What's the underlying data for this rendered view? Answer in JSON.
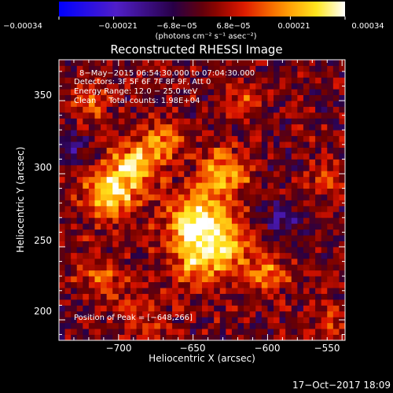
{
  "chart_data": {
    "type": "heatmap",
    "title": "Reconstructed RHESSI Image",
    "xlabel": "Heliocentric X (arcsec)",
    "ylabel": "Heliocentric Y (arcsec)",
    "xlim": [
      -740,
      -548
    ],
    "ylim": [
      186,
      378
    ],
    "x_ticks": [
      -700,
      -650,
      -600,
      -550
    ],
    "y_ticks": [
      200,
      250,
      300,
      350
    ],
    "x_tick_labels": [
      "−700",
      "−650",
      "−600",
      "−550"
    ],
    "y_tick_labels": [
      "200",
      "250",
      "300",
      "350"
    ],
    "colorbar": {
      "ticks": [
        -0.00034,
        -0.00021,
        -6.8e-05,
        6.8e-05,
        0.00021,
        0.00034
      ],
      "tick_labels": [
        "−0.00034",
        "−0.00021",
        "−6.8e−05",
        "6.8e−05",
        "0.00021",
        "0.00034"
      ],
      "units": "(photons cm⁻² s⁻¹ asec⁻²)",
      "range": [
        -0.00034,
        0.00034
      ]
    },
    "annotations": {
      "time_range": "8−May−2015 06:54:30.000 to 07:04:30.000",
      "detectors": "Detectors: 3F 5F 6F 7F 8F 9F, Att 0",
      "energy_range": "Energy Range: 12.0 − 25.0 keV",
      "method_counts": "Clean     Total counts: 1.98E+04",
      "peak": "Position of Peak = [−648,266]"
    },
    "peak_position": [
      -648,
      266
    ],
    "sources": [
      {
        "x": -648,
        "y": 266,
        "amplitude": 0.00034,
        "sigma": 14
      },
      {
        "x": -706,
        "y": 286,
        "amplitude": 0.0003,
        "sigma": 12
      },
      {
        "x": -690,
        "y": 306,
        "amplitude": 0.00024,
        "sigma": 11
      },
      {
        "x": -630,
        "y": 300,
        "amplitude": 0.00022,
        "sigma": 12
      },
      {
        "x": -628,
        "y": 248,
        "amplitude": 0.00022,
        "sigma": 12
      },
      {
        "x": -672,
        "y": 322,
        "amplitude": 0.00018,
        "sigma": 10
      },
      {
        "x": -650,
        "y": 236,
        "amplitude": 0.00018,
        "sigma": 10
      },
      {
        "x": -600,
        "y": 232,
        "amplitude": 0.00015,
        "sigma": 10
      },
      {
        "x": -710,
        "y": 230,
        "amplitude": 0.00014,
        "sigma": 11
      },
      {
        "x": -680,
        "y": 205,
        "amplitude": 0.00014,
        "sigma": 11
      },
      {
        "x": -720,
        "y": 350,
        "amplitude": 0.00012,
        "sigma": 10
      },
      {
        "x": -560,
        "y": 295,
        "amplitude": 0.00011,
        "sigma": 10
      },
      {
        "x": -615,
        "y": 350,
        "amplitude": 0.0001,
        "sigma": 10
      },
      {
        "x": -560,
        "y": 200,
        "amplitude": 0.0001,
        "sigma": 10
      },
      {
        "x": -590,
        "y": 270,
        "amplitude": -0.00012,
        "sigma": 9
      },
      {
        "x": -732,
        "y": 318,
        "amplitude": -0.00012,
        "sigma": 8
      },
      {
        "x": -676,
        "y": 212,
        "amplitude": -8e-05,
        "sigma": 8
      }
    ],
    "grid": false
  },
  "footer_timestamp": "17−Oct−2017 18:09"
}
